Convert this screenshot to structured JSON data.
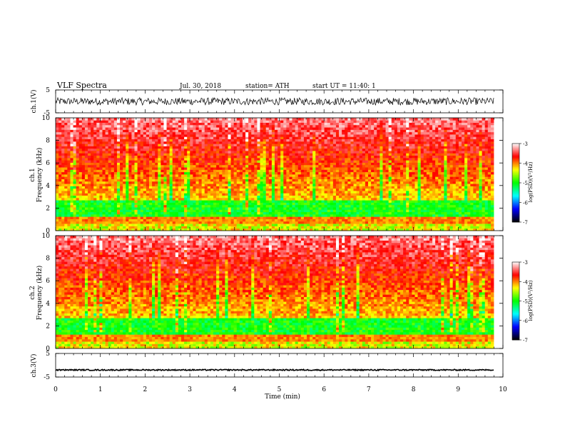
{
  "header": {
    "title": "VLF Spectra",
    "date": "Jul. 30, 2018",
    "station": "station= ATH",
    "start": "start UT =   11:40: 1"
  },
  "chart_data": [
    {
      "type": "line",
      "ylabel": "ch.1(V)",
      "ylim": [
        -5,
        5
      ],
      "yticks": [
        "5",
        "-5"
      ],
      "xlim": [
        0,
        10
      ],
      "description_values": {
        "signal": "noisy waveform, envelope roughly -1.5 to +1.5 V"
      }
    },
    {
      "type": "heatmap",
      "ylabel_top": "ch.1",
      "ylabel": "Frequency (kHz)",
      "ylim": [
        0,
        10
      ],
      "yticks": [
        "0",
        "2",
        "4",
        "6",
        "8",
        "10"
      ],
      "xlim": [
        0,
        10
      ],
      "colorbar": {
        "label": "log(PSD)(V²/Hz)",
        "ticks": [
          "-3",
          "-4",
          "-5",
          "-6",
          "-7"
        ],
        "range": [
          -7,
          -3
        ]
      }
    },
    {
      "type": "heatmap",
      "ylabel_top": "ch.2",
      "ylabel": "Frequency (kHz)",
      "ylim": [
        0,
        10
      ],
      "yticks": [
        "0",
        "2",
        "4",
        "6",
        "8",
        "10"
      ],
      "xlim": [
        0,
        10
      ],
      "colorbar": {
        "label": "log(PSD)(V²/Hz)",
        "ticks": [
          "-3",
          "-4",
          "-5",
          "-6",
          "-7"
        ],
        "range": [
          -7,
          -3
        ]
      }
    },
    {
      "type": "line",
      "ylabel": "ch.3(V)",
      "ylim": [
        -5,
        5
      ],
      "yticks": [
        "5",
        "-5"
      ],
      "xlim": [
        0,
        10
      ],
      "description_values": {
        "signal": "near-constant trace at about -2 V"
      }
    }
  ],
  "xaxis": {
    "label": "Time (min)",
    "ticks": [
      "0",
      "1",
      "2",
      "3",
      "4",
      "5",
      "6",
      "7",
      "8",
      "9",
      "10"
    ]
  },
  "colors": {
    "colormap": [
      "#000000",
      "#0000ff",
      "#00ffff",
      "#00ff00",
      "#ffff00",
      "#ff0000",
      "#ffffff"
    ]
  }
}
